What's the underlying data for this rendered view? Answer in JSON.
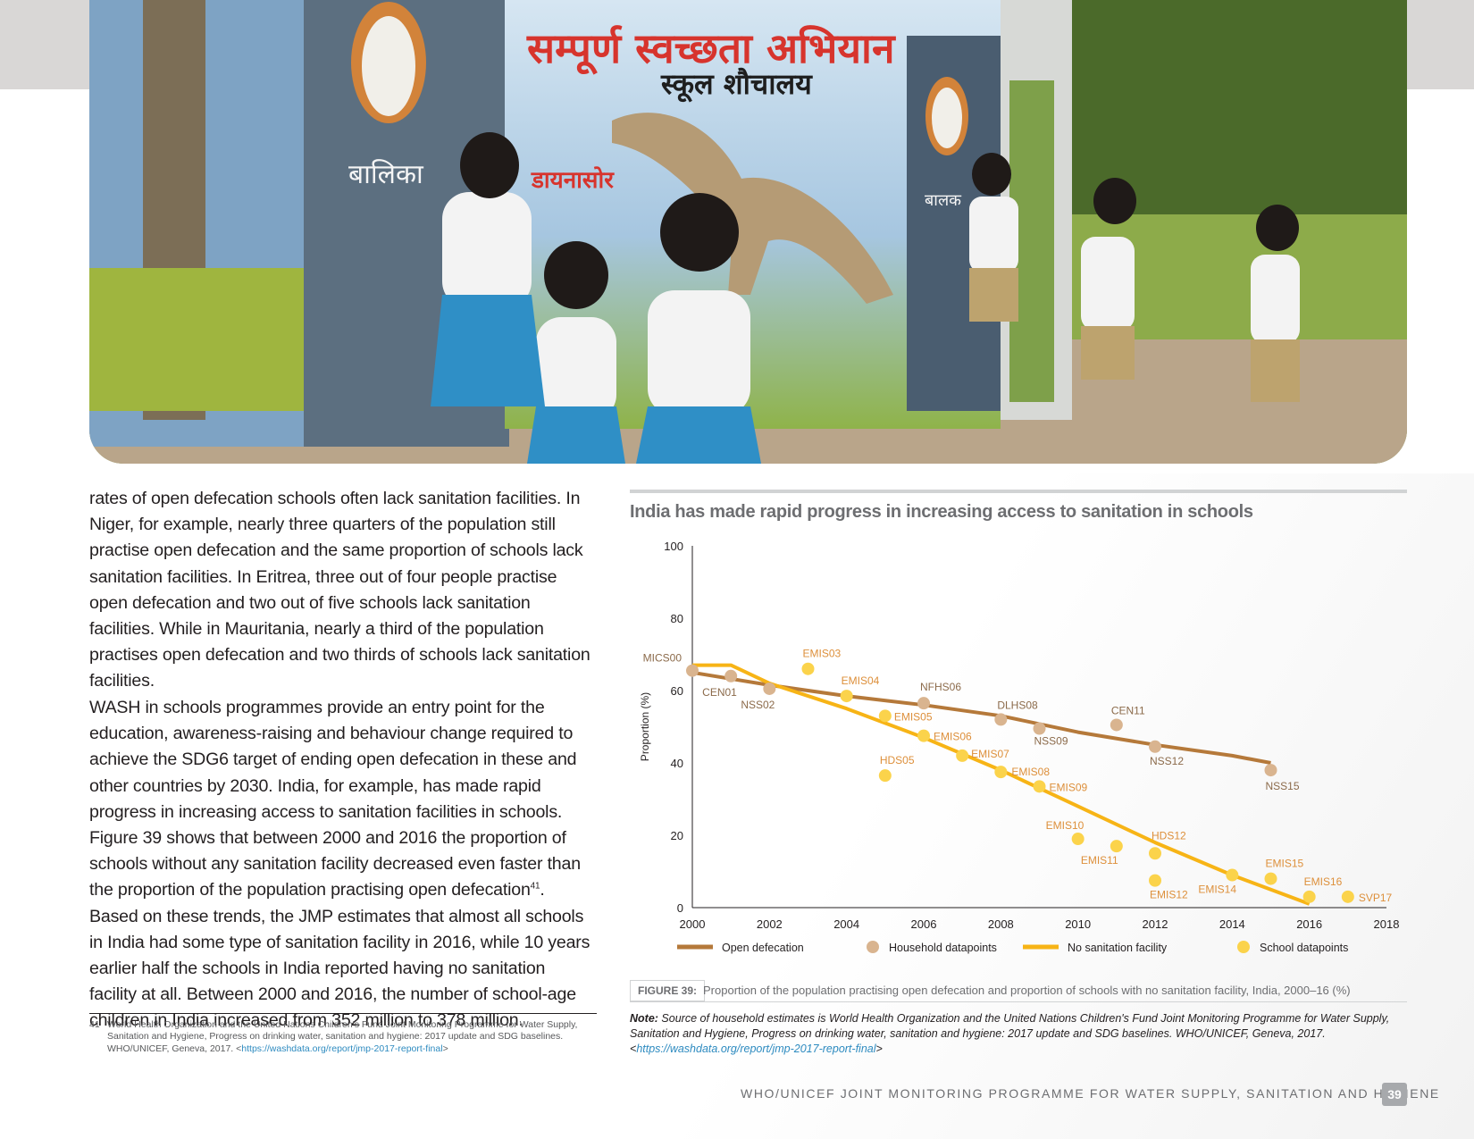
{
  "photo": {
    "mural_sign_main": "सम्पूर्ण स्वच्छता अभियान",
    "mural_sign_sub": "स्कूल शौचालय",
    "door_label_girls": "बालिका",
    "mural_dinosaur_label": "डायनासोर",
    "door_label_boys": "बालक"
  },
  "body": {
    "paragraph1": "rates of open defecation schools often lack sanitation facilities. In Niger, for example, nearly three quarters of the population still practise open defecation and the same proportion of schools lack sanitation facilities. In Eritrea, three out of four people practise open defecation and two out of five schools lack sanitation facilities. While in Mauritania, nearly a third of the population practises open defecation and two thirds of schools lack sanitation facilities.",
    "paragraph2_a": "WASH in schools programmes provide an entry point for the education, awareness-raising and behaviour change required to achieve the SDG6 target of ending open defecation in these and other countries by 2030. India, for example, has made rapid progress in increasing access to sanitation facilities in schools. Figure 39 shows that between 2000 and 2016 the proportion of schools without any sanitation facility decreased even faster than the proportion of the population practising open defecation",
    "paragraph2_ref": "41",
    "paragraph2_b": ". Based on these trends, the JMP estimates that almost all schools in India had some type of sanitation facility in 2016, while 10 years earlier half the schools in India reported having no sanitation facility at all. Between 2000 and 2016, the number of school-age children in India increased from 352 million to 378 million."
  },
  "footnote": {
    "number": "41",
    "text": "World Health Organization and the United Nations Children's Fund Joint Monitoring Programme for Water Supply, Sanitation and Hygiene, Progress on drinking water, sanitation and hygiene: 2017 update and SDG baselines. WHO/UNICEF, Geneva, 2017. <",
    "link": "https://washdata.org/report/jmp-2017-report-final",
    "tail": ">"
  },
  "figure": {
    "label": "FIGURE 39:",
    "caption": "Proportion of the population practising open defecation and proportion of schools with no sanitation facility, India, 2000–16 (%)"
  },
  "note": {
    "prefix": "Note:",
    "text": " Source of household estimates is World Health Organization and the United Nations Children's Fund Joint Monitoring Programme for Water Supply, Sanitation and Hygiene, Progress on drinking water, sanitation and hygiene: 2017 update and SDG baselines. WHO/UNICEF, Geneva, 2017. <",
    "link": "https://washdata.org/report/jmp-2017-report-final",
    "tail": ">"
  },
  "footer": {
    "running_title": "WHO/UNICEF JOINT MONITORING PROGRAMME FOR WATER SUPPLY, SANITATION AND HYGIENE",
    "page_number": "39"
  },
  "colors": {
    "household": "#b5793a",
    "household_point": "#d9b48f",
    "school": "#f7b416",
    "school_point": "#fbd34b",
    "school_label": "#dd8f3a",
    "axis": "#231f20"
  },
  "chart_data": {
    "type": "line",
    "title": "India has made rapid progress in increasing access to sanitation in schools",
    "xlabel": "",
    "ylabel": "Proportion (%)",
    "xlim": [
      2000,
      2018
    ],
    "ylim": [
      0,
      100
    ],
    "x_ticks": [
      2000,
      2002,
      2004,
      2006,
      2008,
      2010,
      2012,
      2014,
      2016,
      2018
    ],
    "y_ticks": [
      0,
      20,
      40,
      60,
      80,
      100
    ],
    "legend_position": "bottom",
    "legend": [
      "Open defecation",
      "Household datapoints",
      "No sanitation facility",
      "School datapoints"
    ],
    "series": [
      {
        "name": "Open defecation",
        "kind": "line",
        "points": [
          [
            2000,
            65
          ],
          [
            2002,
            61.5
          ],
          [
            2004,
            58.5
          ],
          [
            2006,
            56
          ],
          [
            2008,
            53
          ],
          [
            2010,
            48.5
          ],
          [
            2012,
            45
          ],
          [
            2014,
            42
          ],
          [
            2015,
            40
          ]
        ]
      },
      {
        "name": "No sanitation facility",
        "kind": "line",
        "points": [
          [
            2000,
            67
          ],
          [
            2001,
            67
          ],
          [
            2002,
            62
          ],
          [
            2004,
            55
          ],
          [
            2006,
            47
          ],
          [
            2008,
            38
          ],
          [
            2010,
            28
          ],
          [
            2012,
            18
          ],
          [
            2014,
            9
          ],
          [
            2015,
            5
          ],
          [
            2016,
            1
          ]
        ]
      },
      {
        "name": "Household datapoints",
        "kind": "scatter",
        "points": [
          {
            "label": "MICS00",
            "x": 2000,
            "y": 65.5
          },
          {
            "label": "CEN01",
            "x": 2001,
            "y": 64
          },
          {
            "label": "NSS02",
            "x": 2002,
            "y": 60.5
          },
          {
            "label": "NFHS06",
            "x": 2006,
            "y": 56.5
          },
          {
            "label": "DLHS08",
            "x": 2008,
            "y": 52
          },
          {
            "label": "NSS09",
            "x": 2009,
            "y": 49.5
          },
          {
            "label": "CEN11",
            "x": 2011,
            "y": 50.5
          },
          {
            "label": "NSS12",
            "x": 2012,
            "y": 44.5
          },
          {
            "label": "NSS15",
            "x": 2015,
            "y": 38
          }
        ]
      },
      {
        "name": "School datapoints",
        "kind": "scatter",
        "points": [
          {
            "label": "EMIS03",
            "x": 2003,
            "y": 66
          },
          {
            "label": "EMIS04",
            "x": 2004,
            "y": 58.5
          },
          {
            "label": "EMIS05",
            "x": 2005,
            "y": 53
          },
          {
            "label": "HDS05",
            "x": 2005,
            "y": 36.5
          },
          {
            "label": "EMIS06",
            "x": 2006,
            "y": 47.5
          },
          {
            "label": "EMIS07",
            "x": 2007,
            "y": 42
          },
          {
            "label": "EMIS08",
            "x": 2008,
            "y": 37.5
          },
          {
            "label": "EMIS09",
            "x": 2009,
            "y": 33.5
          },
          {
            "label": "EMIS10",
            "x": 2010,
            "y": 19
          },
          {
            "label": "EMIS11",
            "x": 2011,
            "y": 17
          },
          {
            "label": "HDS12",
            "x": 2012,
            "y": 15
          },
          {
            "label": "EMIS12",
            "x": 2012,
            "y": 7.5
          },
          {
            "label": "EMIS14",
            "x": 2014,
            "y": 9
          },
          {
            "label": "EMIS15",
            "x": 2015,
            "y": 8
          },
          {
            "label": "EMIS16",
            "x": 2016,
            "y": 3
          },
          {
            "label": "SVP17",
            "x": 2017,
            "y": 3
          }
        ]
      }
    ]
  }
}
